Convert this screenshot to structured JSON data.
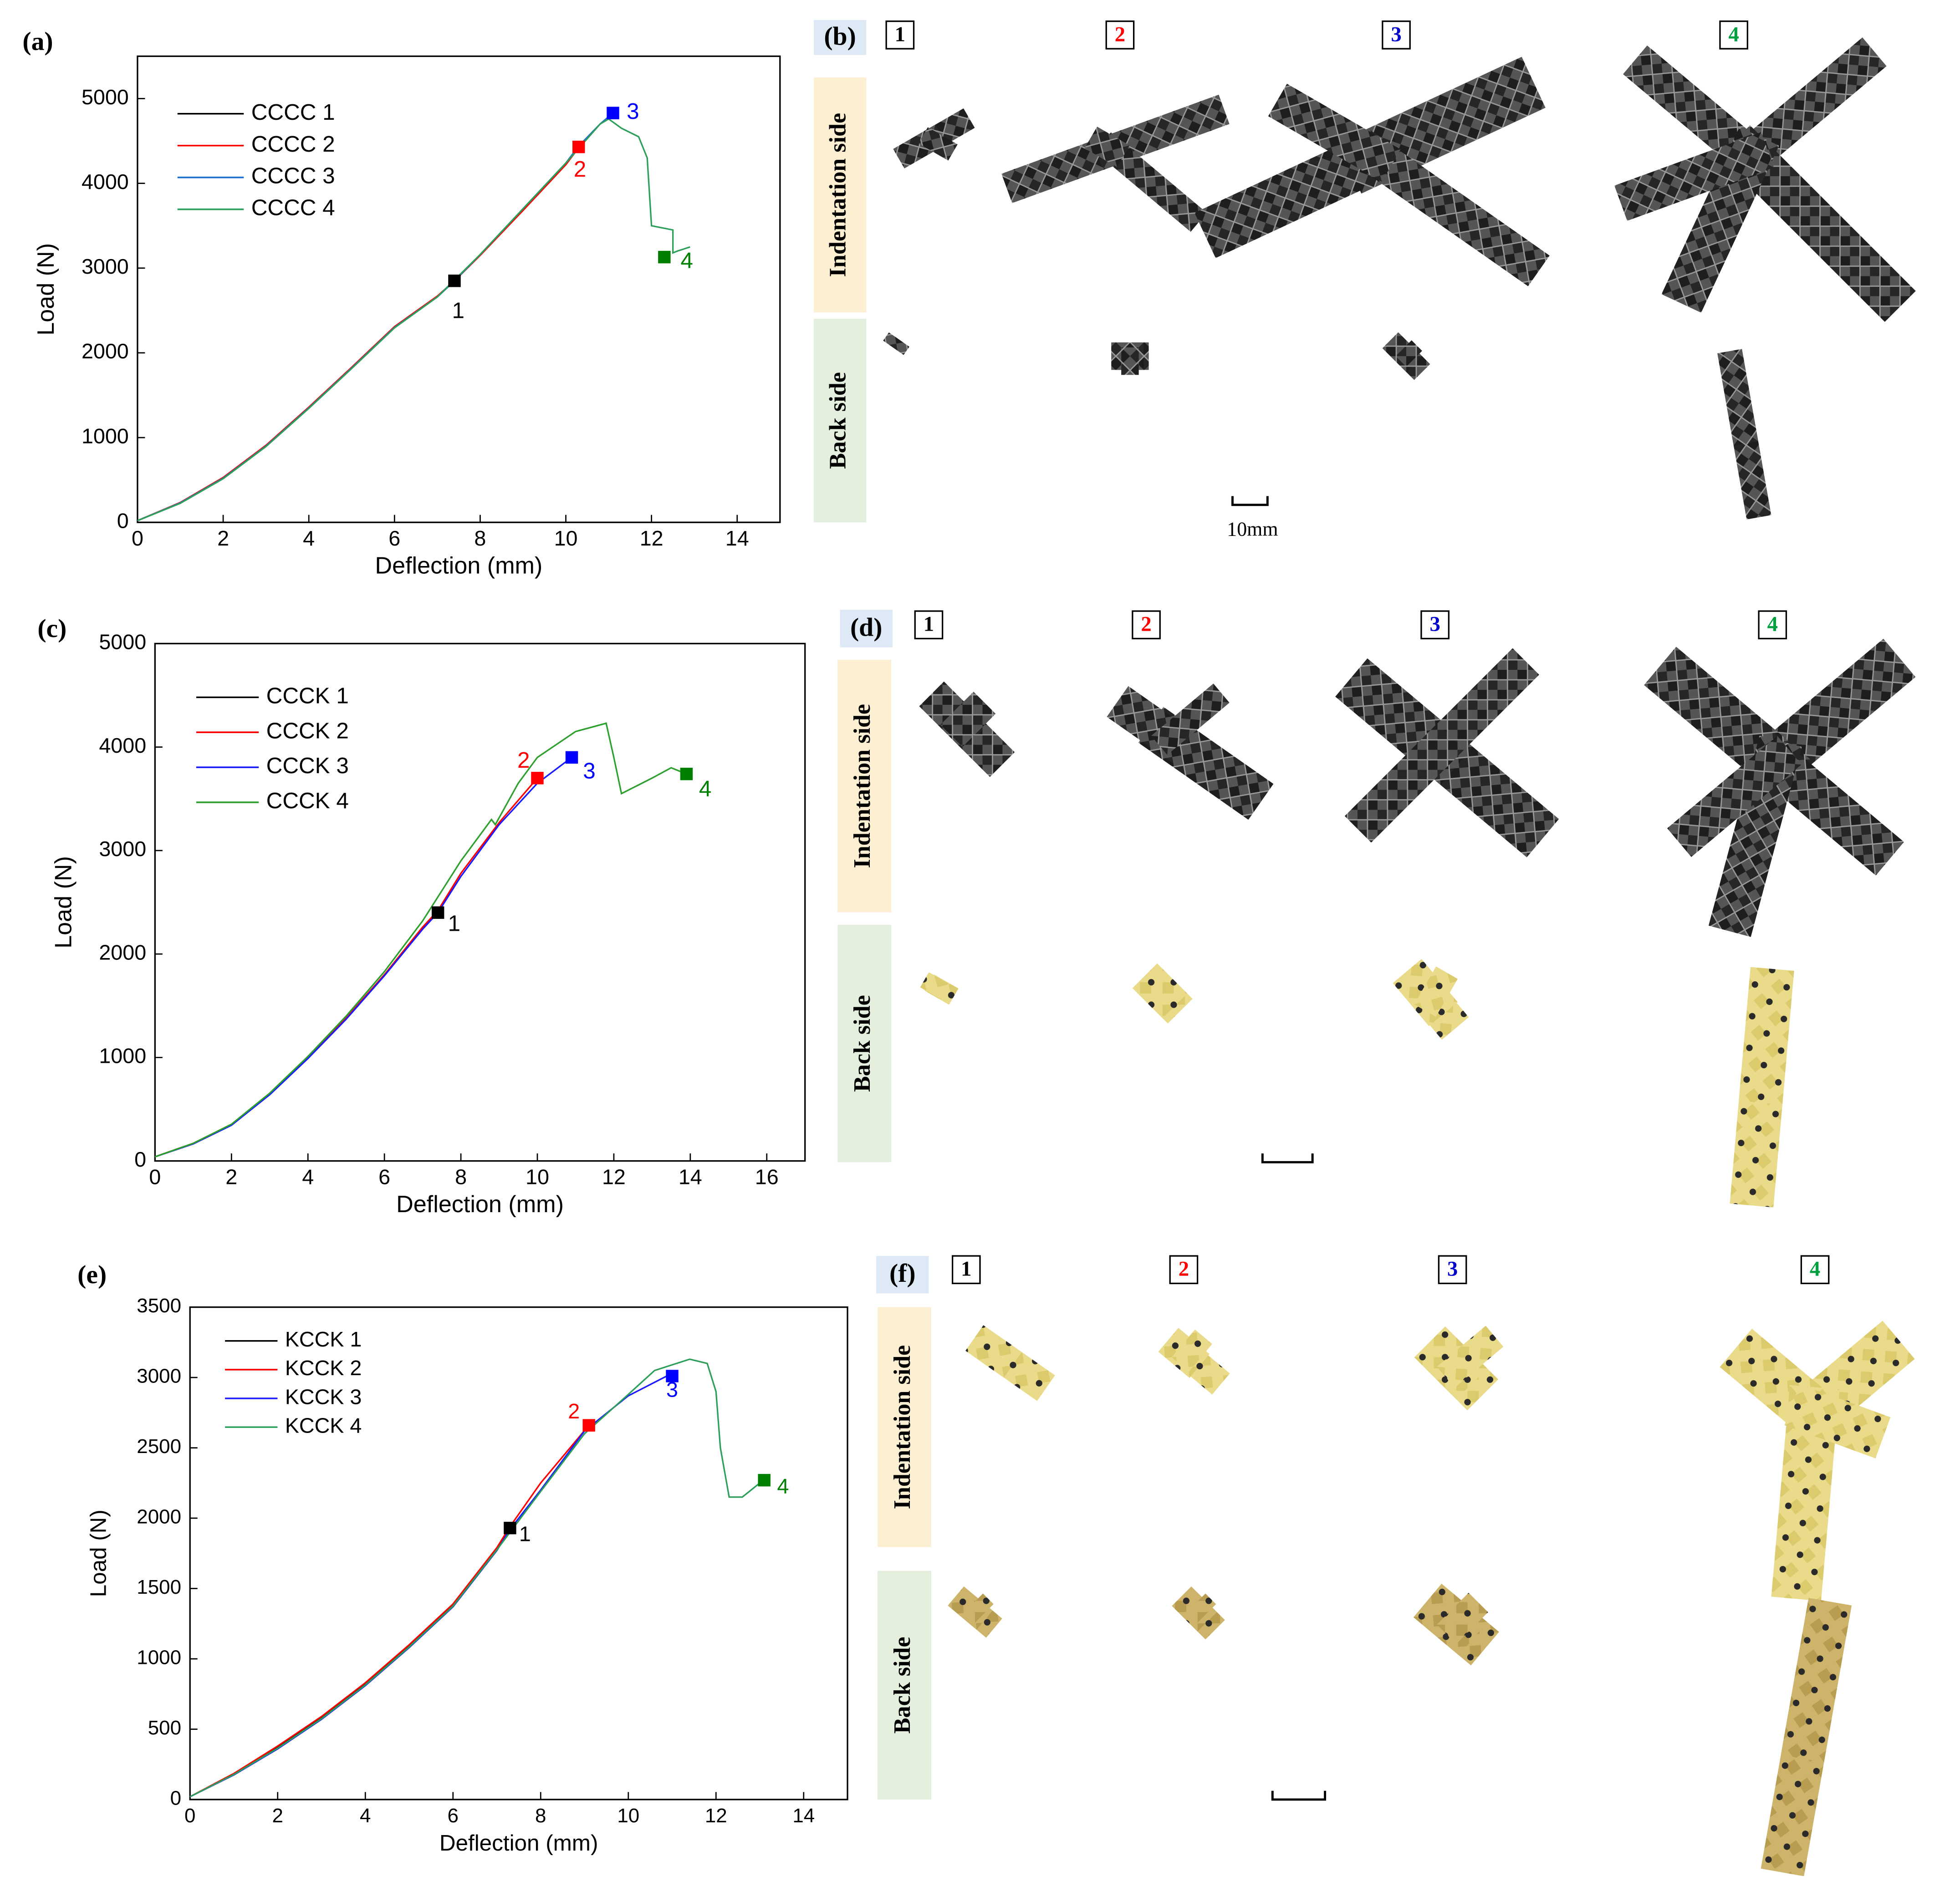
{
  "chart_data": [
    {
      "type": "line",
      "panel_label": "(a)",
      "xlabel": "Deflection (mm)",
      "ylabel": "Load (N)",
      "xlim": [
        0,
        15
      ],
      "ylim": [
        0,
        5500
      ],
      "xticks": [
        0,
        2,
        4,
        6,
        8,
        10,
        12,
        14
      ],
      "yticks": [
        0,
        1000,
        2000,
        3000,
        4000,
        5000
      ],
      "legend": "upper left",
      "series": [
        {
          "name": "CCCC 1",
          "color": "#000000",
          "x": [
            0,
            1,
            2,
            3,
            4,
            5,
            6,
            7,
            7.4
          ],
          "values": [
            20,
            230,
            520,
            900,
            1350,
            1820,
            2300,
            2660,
            2850
          ]
        },
        {
          "name": "CCCC 2",
          "color": "#ff0000",
          "x": [
            0,
            1,
            2,
            3,
            4,
            5,
            6,
            7,
            7.4,
            8,
            9,
            10,
            10.3
          ],
          "values": [
            20,
            235,
            530,
            910,
            1360,
            1830,
            2310,
            2670,
            2850,
            3150,
            3680,
            4220,
            4420
          ]
        },
        {
          "name": "CCCC 3",
          "color": "#1f6fd0",
          "x": [
            0,
            1,
            2,
            3,
            4,
            5,
            6,
            7,
            7.4,
            8,
            9,
            10,
            10.3,
            10.8,
            11.1
          ],
          "values": [
            20,
            230,
            520,
            900,
            1350,
            1820,
            2300,
            2660,
            2850,
            3160,
            3700,
            4240,
            4440,
            4700,
            4830
          ]
        },
        {
          "name": "CCCC 4",
          "color": "#2ca05a",
          "x": [
            0,
            1,
            2,
            3,
            4,
            5,
            6,
            7,
            8,
            9,
            10,
            10.8,
            11.0,
            11.3,
            11.5,
            11.7,
            11.9,
            12.0,
            12.5,
            12.5,
            12.6,
            12.9
          ],
          "values": [
            20,
            225,
            515,
            895,
            1345,
            1815,
            2295,
            2660,
            3160,
            3700,
            4240,
            4700,
            4760,
            4650,
            4600,
            4550,
            4300,
            3500,
            3450,
            3180,
            3200,
            3250
          ]
        }
      ],
      "markers": [
        {
          "label": "1",
          "x": 7.4,
          "y": 2850,
          "color": "#000000"
        },
        {
          "label": "2",
          "x": 10.3,
          "y": 4430,
          "color": "#ff0000"
        },
        {
          "label": "3",
          "x": 11.1,
          "y": 4830,
          "color": "#0000ff"
        },
        {
          "label": "4",
          "x": 12.3,
          "y": 3130,
          "color": "#008000"
        }
      ]
    },
    {
      "type": "line",
      "panel_label": "(c)",
      "xlabel": "Deflection (mm)",
      "ylabel": "Load (N)",
      "xlim": [
        0,
        17
      ],
      "ylim": [
        0,
        5000
      ],
      "xticks": [
        0,
        2,
        4,
        6,
        8,
        10,
        12,
        14,
        16
      ],
      "yticks": [
        0,
        1000,
        2000,
        3000,
        4000,
        5000
      ],
      "legend": "upper left",
      "series": [
        {
          "name": "CCCK 1",
          "color": "#000000",
          "x": [
            0,
            1,
            2,
            3,
            4,
            5,
            6,
            7,
            7.4
          ],
          "values": [
            40,
            170,
            350,
            650,
            1000,
            1380,
            1800,
            2250,
            2400
          ]
        },
        {
          "name": "CCCK 2",
          "color": "#ff0000",
          "x": [
            0,
            1,
            2,
            3,
            4,
            5,
            6,
            7,
            7.4,
            8,
            9,
            10
          ],
          "values": [
            40,
            170,
            350,
            650,
            1000,
            1380,
            1800,
            2260,
            2420,
            2780,
            3270,
            3700
          ]
        },
        {
          "name": "CCCK 3",
          "color": "#1a1aff",
          "x": [
            0,
            1,
            2,
            3,
            4,
            5,
            6,
            7,
            7.4,
            8,
            9,
            10,
            10.9
          ],
          "values": [
            40,
            165,
            345,
            640,
            990,
            1370,
            1790,
            2240,
            2400,
            2750,
            3250,
            3650,
            3900
          ]
        },
        {
          "name": "CCCK 4",
          "color": "#2ca02c",
          "x": [
            0,
            1,
            2,
            3,
            4,
            5,
            6,
            7,
            8,
            8.8,
            8.9,
            9.5,
            10,
            11,
            11.8,
            12,
            12.2,
            13,
            13.5,
            13.9
          ],
          "values": [
            40,
            170,
            355,
            655,
            1010,
            1400,
            1830,
            2320,
            2900,
            3300,
            3250,
            3650,
            3900,
            4150,
            4230,
            3900,
            3550,
            3700,
            3800,
            3740
          ]
        }
      ],
      "markers": [
        {
          "label": "1",
          "x": 7.4,
          "y": 2400,
          "color": "#000000"
        },
        {
          "label": "2",
          "x": 10,
          "y": 3700,
          "color": "#ff0000"
        },
        {
          "label": "3",
          "x": 10.9,
          "y": 3900,
          "color": "#0000ff"
        },
        {
          "label": "4",
          "x": 13.9,
          "y": 3740,
          "color": "#008000"
        }
      ]
    },
    {
      "type": "line",
      "panel_label": "(e)",
      "xlabel": "Deflection (mm)",
      "ylabel": "Load (N)",
      "xlim": [
        0,
        15
      ],
      "ylim": [
        0,
        3500
      ],
      "xticks": [
        0,
        2,
        4,
        6,
        8,
        10,
        12,
        14
      ],
      "yticks": [
        0,
        500,
        1000,
        1500,
        2000,
        2500,
        3000,
        3500
      ],
      "legend": "upper left",
      "series": [
        {
          "name": "KCCK 1",
          "color": "#000000",
          "x": [
            0,
            1,
            2,
            3,
            4,
            5,
            6,
            7,
            7.3
          ],
          "values": [
            20,
            180,
            370,
            580,
            820,
            1090,
            1380,
            1780,
            1930
          ]
        },
        {
          "name": "KCCK 2",
          "color": "#ff0000",
          "x": [
            0,
            1,
            2,
            3,
            4,
            5,
            6,
            7,
            7.3,
            8,
            9.1
          ],
          "values": [
            20,
            185,
            380,
            590,
            830,
            1100,
            1390,
            1790,
            1940,
            2250,
            2660
          ]
        },
        {
          "name": "KCCK 3",
          "color": "#1a1aff",
          "x": [
            0,
            1,
            2,
            3,
            4,
            5,
            6,
            7,
            7.3,
            8,
            9,
            10,
            11
          ],
          "values": [
            20,
            175,
            360,
            570,
            810,
            1080,
            1370,
            1770,
            1920,
            2200,
            2620,
            2870,
            3030
          ]
        },
        {
          "name": "KCCK 4",
          "color": "#2ca05a",
          "x": [
            0,
            1,
            2,
            3,
            4,
            5,
            6,
            7,
            8,
            9,
            10,
            10.6,
            11.4,
            11.8,
            12,
            12.1,
            12.3,
            12.6,
            13,
            13.1
          ],
          "values": [
            20,
            178,
            365,
            575,
            815,
            1085,
            1375,
            1775,
            2190,
            2600,
            2880,
            3050,
            3130,
            3100,
            2900,
            2500,
            2150,
            2150,
            2250,
            2270
          ]
        }
      ],
      "markers": [
        {
          "label": "1",
          "x": 7.3,
          "y": 1930,
          "color": "#000000"
        },
        {
          "label": "2",
          "x": 9.1,
          "y": 2660,
          "color": "#ff0000"
        },
        {
          "label": "3",
          "x": 11,
          "y": 3010,
          "color": "#0000ff"
        },
        {
          "label": "4",
          "x": 13.1,
          "y": 2270,
          "color": "#008000"
        }
      ]
    }
  ],
  "panels": [
    {
      "label": "(b)",
      "columns": [
        "1",
        "2",
        "3",
        "4"
      ],
      "column_colors": [
        "#000000",
        "#ff0000",
        "#0000cc",
        "#00a040"
      ],
      "rows": [
        "Indentation side",
        "Back side"
      ],
      "scale_label": "10mm"
    },
    {
      "label": "(d)",
      "columns": [
        "1",
        "2",
        "3",
        "4"
      ],
      "column_colors": [
        "#000000",
        "#ff0000",
        "#0000cc",
        "#00a040"
      ],
      "rows": [
        "Indentation side",
        "Back side"
      ]
    },
    {
      "label": "(f)",
      "columns": [
        "1",
        "2",
        "3",
        "4"
      ],
      "column_colors": [
        "#000000",
        "#ff0000",
        "#0000cc",
        "#00a040"
      ],
      "rows": [
        "Indentation side",
        "Back side"
      ]
    }
  ]
}
